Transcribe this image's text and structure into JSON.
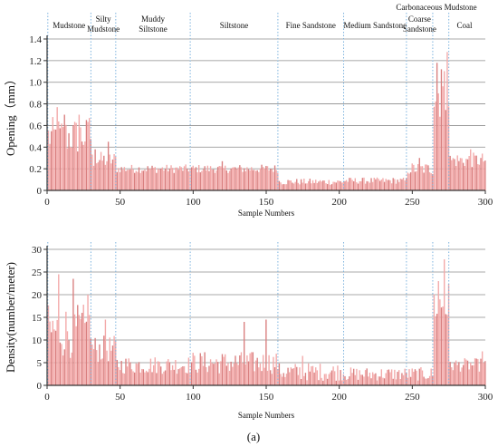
{
  "chart_data": [
    {
      "type": "bar",
      "panel": "top",
      "ylabel": "Opening（mm）",
      "xlabel": "Sample Numbers",
      "xlim": [
        0,
        300
      ],
      "ylim": [
        0,
        1.4
      ],
      "x_ticks": [
        0,
        50,
        100,
        150,
        200,
        250,
        300
      ],
      "y_ticks": [
        0,
        0.2,
        0.4,
        0.6,
        0.8,
        1.0,
        1.2,
        1.4
      ],
      "y_tick_labels": [
        "0",
        "0.2",
        "0.4",
        "0.6",
        "0.8",
        "1.0",
        "1.2",
        "1.4"
      ],
      "grid": "horizontal",
      "bar_color": "#f3a9a9",
      "segments": [
        {
          "from": 1,
          "to": 30,
          "mean": 0.5,
          "amp": 0.18,
          "peaks": [
            [
              7,
              0.77
            ],
            [
              12,
              0.7
            ],
            [
              22,
              0.7
            ],
            [
              29,
              0.67
            ]
          ]
        },
        {
          "from": 31,
          "to": 47,
          "mean": 0.28,
          "amp": 0.08,
          "peaks": [
            [
              33,
              0.38
            ],
            [
              42,
              0.45
            ]
          ]
        },
        {
          "from": 48,
          "to": 98,
          "mean": 0.2,
          "amp": 0.04,
          "peaks": []
        },
        {
          "from": 99,
          "to": 158,
          "mean": 0.2,
          "amp": 0.04,
          "peaks": [
            [
              120,
              0.27
            ]
          ]
        },
        {
          "from": 159,
          "to": 203,
          "mean": 0.08,
          "amp": 0.03,
          "peaks": []
        },
        {
          "from": 204,
          "to": 246,
          "mean": 0.09,
          "amp": 0.03,
          "peaks": []
        },
        {
          "from": 247,
          "to": 264,
          "mean": 0.2,
          "amp": 0.06,
          "peaks": [
            [
              255,
              0.3
            ]
          ]
        },
        {
          "from": 265,
          "to": 275,
          "mean": 0.9,
          "amp": 0.25,
          "peaks": [
            [
              267,
              1.18
            ],
            [
              270,
              1.12
            ],
            [
              274,
              1.28
            ]
          ]
        },
        {
          "from": 276,
          "to": 300,
          "mean": 0.28,
          "amp": 0.07,
          "peaks": [
            [
              290,
              0.38
            ],
            [
              297,
              0.3
            ]
          ]
        }
      ]
    },
    {
      "type": "bar",
      "panel": "bottom",
      "ylabel": "Density(number/meter)",
      "xlabel": "Sample Numbers",
      "xlim": [
        0,
        300
      ],
      "ylim": [
        0,
        30
      ],
      "x_ticks": [
        0,
        50,
        100,
        150,
        200,
        250,
        300
      ],
      "y_ticks": [
        0,
        5,
        10,
        15,
        20,
        25,
        30
      ],
      "y_tick_labels": [
        "0",
        "5",
        "10",
        "15",
        "20",
        "25",
        "30"
      ],
      "grid": "horizontal",
      "bar_color": "#f3a9a9",
      "segments": [
        {
          "from": 1,
          "to": 30,
          "mean": 12.0,
          "amp": 6.0,
          "peaks": [
            [
              8,
              24.5
            ],
            [
              18,
              23.5
            ],
            [
              28,
              20.0
            ]
          ]
        },
        {
          "from": 31,
          "to": 47,
          "mean": 8.0,
          "amp": 3.0,
          "peaks": [
            [
              40,
              14.5
            ]
          ]
        },
        {
          "from": 48,
          "to": 98,
          "mean": 4.5,
          "amp": 2.0,
          "peaks": []
        },
        {
          "from": 99,
          "to": 158,
          "mean": 5.0,
          "amp": 2.5,
          "peaks": [
            [
              135,
              14.0
            ],
            [
              150,
              14.5
            ]
          ]
        },
        {
          "from": 159,
          "to": 203,
          "mean": 3.0,
          "amp": 2.0,
          "peaks": [
            [
              175,
              6.5
            ]
          ]
        },
        {
          "from": 204,
          "to": 246,
          "mean": 2.5,
          "amp": 1.5,
          "peaks": []
        },
        {
          "from": 247,
          "to": 264,
          "mean": 2.5,
          "amp": 1.5,
          "peaks": []
        },
        {
          "from": 265,
          "to": 275,
          "mean": 18.0,
          "amp": 5.0,
          "peaks": [
            [
              268,
              23.0
            ],
            [
              272,
              27.8
            ]
          ]
        },
        {
          "from": 276,
          "to": 300,
          "mean": 4.5,
          "amp": 1.5,
          "peaks": [
            [
              298,
              7.5
            ]
          ]
        }
      ]
    }
  ],
  "lithology": [
    {
      "label": "Mudstone",
      "from": 0,
      "to": 30
    },
    {
      "label": "Silty\nMudstone",
      "from": 30,
      "to": 47
    },
    {
      "label": "Muddy\nSiltstone",
      "from": 47,
      "to": 98
    },
    {
      "label": "Siltstone",
      "from": 98,
      "to": 158
    },
    {
      "label": "Fine Sandstone",
      "from": 158,
      "to": 203
    },
    {
      "label": "Medium Sandstone",
      "from": 203,
      "to": 246
    },
    {
      "label": "Coarse\nSandstone",
      "from": 246,
      "to": 264
    },
    {
      "label": "Carbonaceous Mudstone",
      "from": 264,
      "to": 275
    },
    {
      "label": "Coal",
      "from": 275,
      "to": 300
    }
  ],
  "boundaries": [
    30,
    47,
    98,
    158,
    203,
    246,
    264,
    275
  ],
  "caption": "(a)",
  "colors": {
    "bars": "#f3a9a9",
    "bar_tip": "#d97f7f",
    "grid": "#8c8c8c",
    "divider": "#7db3de",
    "axis": "#333333"
  }
}
